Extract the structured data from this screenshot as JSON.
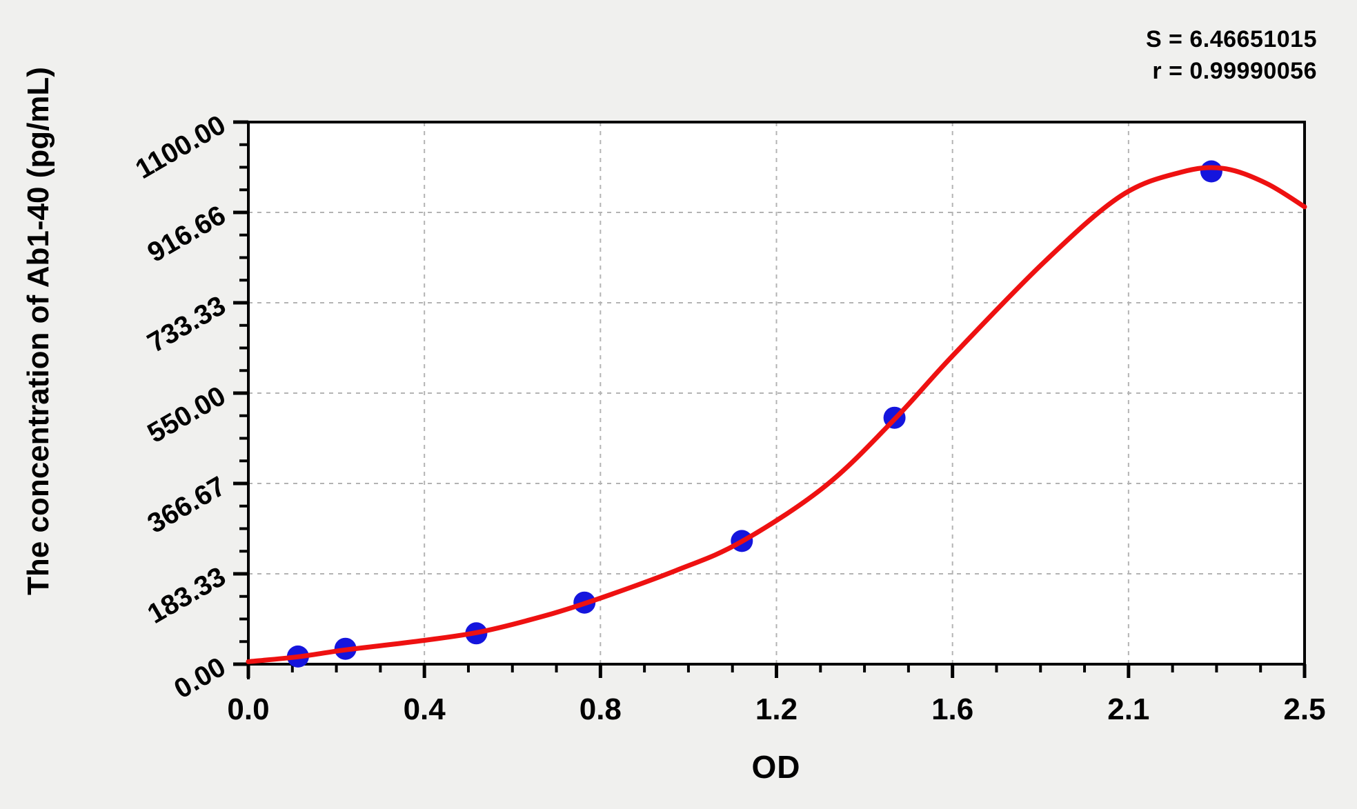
{
  "page": {
    "background": "#f0f0ee"
  },
  "stats": {
    "s_label": "S = 6.46651015",
    "r_label": "r = 0.99990056"
  },
  "chart_data": {
    "type": "scatter",
    "title": "",
    "xlabel": "OD",
    "ylabel": "The concentration of Ab1-40 (pg/mL)",
    "xlim": [
      0,
      2.47
    ],
    "ylim": [
      0,
      1100
    ],
    "x_tick_labels": [
      "0.0",
      "0.4",
      "0.8",
      "1.2",
      "1.6",
      "2.1",
      "2.5"
    ],
    "y_tick_labels": [
      "0.00",
      "183.33",
      "366.67",
      "550.00",
      "733.33",
      "916.66",
      "1100.00"
    ],
    "minor_ticks_per_major": 4,
    "grid": true,
    "legend": "none",
    "stats": {
      "S": 6.46651015,
      "r": 0.99990056
    },
    "points": {
      "od": [
        0.116,
        0.227,
        0.533,
        0.786,
        1.154,
        1.511,
        2.252
      ],
      "concentration": [
        15.6,
        31.2,
        62.5,
        125,
        250,
        500,
        1000
      ]
    },
    "fit_curve": [
      [
        0.0,
        5
      ],
      [
        0.116,
        15
      ],
      [
        0.227,
        29
      ],
      [
        0.4,
        47
      ],
      [
        0.533,
        64
      ],
      [
        0.65,
        88
      ],
      [
        0.786,
        123
      ],
      [
        1.0,
        190
      ],
      [
        1.154,
        249
      ],
      [
        1.35,
        362
      ],
      [
        1.511,
        497
      ],
      [
        1.645,
        624
      ],
      [
        1.86,
        815
      ],
      [
        2.04,
        950
      ],
      [
        2.18,
        998
      ],
      [
        2.28,
        1006
      ],
      [
        2.38,
        976
      ],
      [
        2.47,
        928
      ]
    ],
    "colors": {
      "curve": "#ee1111",
      "points": "#1515dd",
      "grid": "#b3b3b3",
      "plot_bg": "#ffffff",
      "frame": "#000000"
    }
  }
}
